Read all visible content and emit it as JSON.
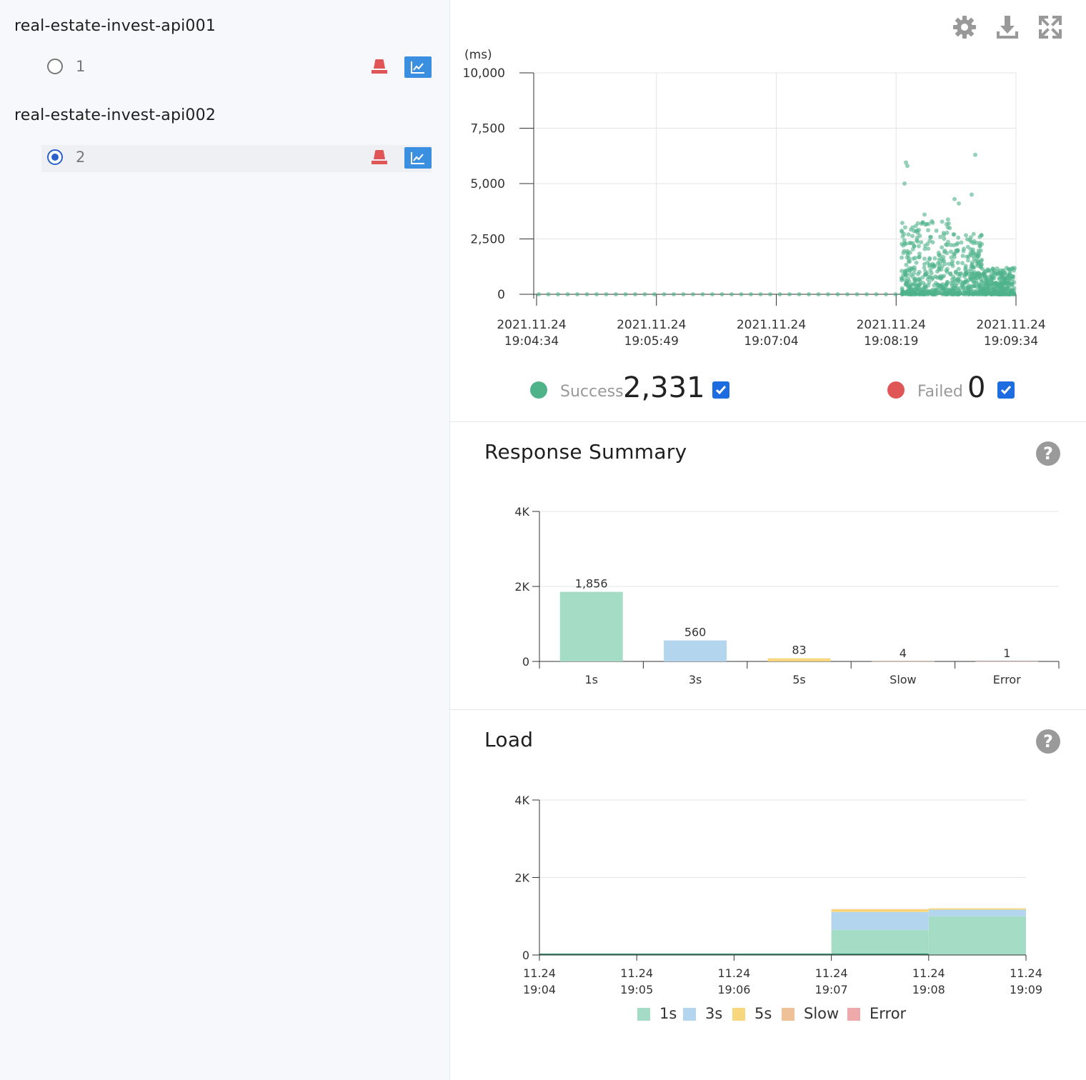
{
  "sidebar": {
    "agents": [
      {
        "name": "real-estate-invest-api001",
        "instances": [
          {
            "label": "1",
            "selected": false
          }
        ]
      },
      {
        "name": "real-estate-invest-api002",
        "instances": [
          {
            "label": "2",
            "selected": true
          }
        ]
      }
    ]
  },
  "toolbar": {
    "icons": [
      "gear-icon",
      "download-icon",
      "fullscreen-icon"
    ]
  },
  "colors": {
    "success": "#4fb38a",
    "failed": "#e05555",
    "accent": "#1e6de0",
    "bucket_1s": "#a5dcc6",
    "bucket_3s": "#b3d6ee",
    "bucket_5s": "#f7d77d",
    "bucket_slow": "#efc198",
    "bucket_error": "#eea9ab"
  },
  "scatter": {
    "unit": "(ms)",
    "legend": {
      "success_label": "Success",
      "success_count": "2,331",
      "failed_label": "Failed",
      "failed_count": "0",
      "success_checked": true,
      "failed_checked": true
    }
  },
  "response_summary": {
    "title": "Response Summary"
  },
  "load": {
    "title": "Load",
    "legend": [
      "1s",
      "3s",
      "5s",
      "Slow",
      "Error"
    ]
  },
  "chart_data": [
    {
      "type": "scatter",
      "ylabel": "(ms)",
      "ylim": [
        0,
        10000
      ],
      "yticks": [
        "10,000",
        "7,500",
        "5,000",
        "2,500",
        "0"
      ],
      "xticks": [
        [
          "2021.11.24",
          "19:04:34"
        ],
        [
          "2021.11.24",
          "19:05:49"
        ],
        [
          "2021.11.24",
          "19:07:04"
        ],
        [
          "2021.11.24",
          "19:08:19"
        ],
        [
          "2021.11.24",
          "19:09:34"
        ]
      ],
      "x_range": [
        "2021.11.24 19:04:34",
        "2021.11.24 19:09:34"
      ],
      "grid": true,
      "series": [
        {
          "name": "Success",
          "count": 2331
        },
        {
          "name": "Failed",
          "count": 0
        }
      ]
    },
    {
      "type": "bar",
      "categories": [
        "1s",
        "3s",
        "5s",
        "Slow",
        "Error"
      ],
      "values": [
        1856,
        560,
        83,
        4,
        1
      ],
      "data_labels": [
        "1,856",
        "560",
        "83",
        "4",
        "1"
      ],
      "yticks": [
        "4K",
        "2K",
        "0"
      ],
      "ylim": [
        0,
        4000
      ],
      "grid": true
    },
    {
      "type": "area",
      "stacked": true,
      "x": [
        [
          "11.24",
          "19:04"
        ],
        [
          "11.24",
          "19:05"
        ],
        [
          "11.24",
          "19:06"
        ],
        [
          "11.24",
          "19:07"
        ],
        [
          "11.24",
          "19:08"
        ],
        [
          "11.24",
          "19:09"
        ]
      ],
      "yticks": [
        "4K",
        "2K",
        "0"
      ],
      "ylim": [
        0,
        4000
      ],
      "grid": true,
      "legend_position": "bottom",
      "series": [
        {
          "name": "1s",
          "values": [
            0,
            0,
            0,
            0,
            650,
            1000
          ]
        },
        {
          "name": "3s",
          "values": [
            0,
            0,
            0,
            0,
            460,
            170
          ]
        },
        {
          "name": "5s",
          "values": [
            0,
            0,
            0,
            0,
            70,
            35
          ]
        },
        {
          "name": "Slow",
          "values": [
            0,
            0,
            0,
            0,
            3,
            1
          ]
        },
        {
          "name": "Error",
          "values": [
            0,
            0,
            0,
            0,
            1,
            0
          ]
        }
      ]
    }
  ]
}
